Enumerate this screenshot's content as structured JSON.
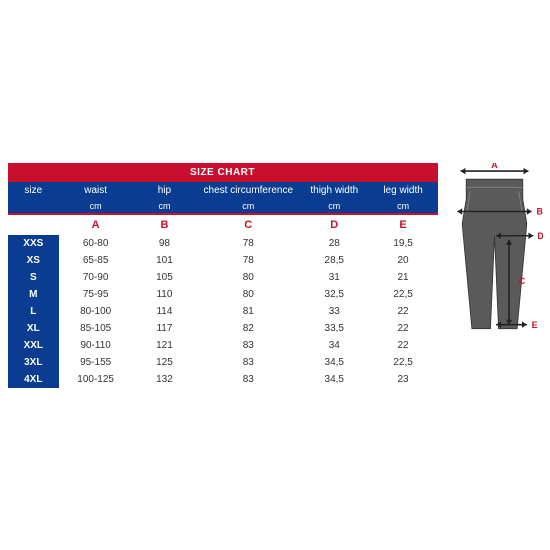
{
  "title": "SIZE CHART",
  "header": {
    "size": "size",
    "waist": "waist",
    "hip": "hip",
    "chest": "chest circumference",
    "thigh": "thigh width",
    "leg": "leg width"
  },
  "unit": "cm",
  "letters": {
    "a": "A",
    "b": "B",
    "c": "C",
    "d": "D",
    "e": "E"
  },
  "rows": [
    {
      "size": "XXS",
      "a": "60-80",
      "b": "98",
      "c": "78",
      "d": "28",
      "e": "19,5"
    },
    {
      "size": "XS",
      "a": "65-85",
      "b": "101",
      "c": "78",
      "d": "28,5",
      "e": "20"
    },
    {
      "size": "S",
      "a": "70-90",
      "b": "105",
      "c": "80",
      "d": "31",
      "e": "21"
    },
    {
      "size": "M",
      "a": "75-95",
      "b": "110",
      "c": "80",
      "d": "32,5",
      "e": "22,5"
    },
    {
      "size": "L",
      "a": "80-100",
      "b": "114",
      "c": "81",
      "d": "33",
      "e": "22"
    },
    {
      "size": "XL",
      "a": "85-105",
      "b": "117",
      "c": "82",
      "d": "33,5",
      "e": "22"
    },
    {
      "size": "XXL",
      "a": "90-110",
      "b": "121",
      "c": "83",
      "d": "34",
      "e": "22"
    },
    {
      "size": "3XL",
      "a": "95-155",
      "b": "125",
      "c": "83",
      "d": "34,5",
      "e": "22,5"
    },
    {
      "size": "4XL",
      "a": "100-125",
      "b": "132",
      "c": "83",
      "d": "34,5",
      "e": "23"
    }
  ],
  "colors": {
    "title_bg": "#c8102e",
    "header_bg": "#0a3d91",
    "accent": "#c8102e",
    "text": "#333333",
    "white": "#ffffff"
  },
  "diagram": {
    "labels": {
      "a": "A",
      "b": "B",
      "c": "C",
      "d": "D",
      "e": "E"
    },
    "label_color": "#c8102e",
    "line_color": "#222222",
    "pants_fill": "#5a5a5a"
  }
}
